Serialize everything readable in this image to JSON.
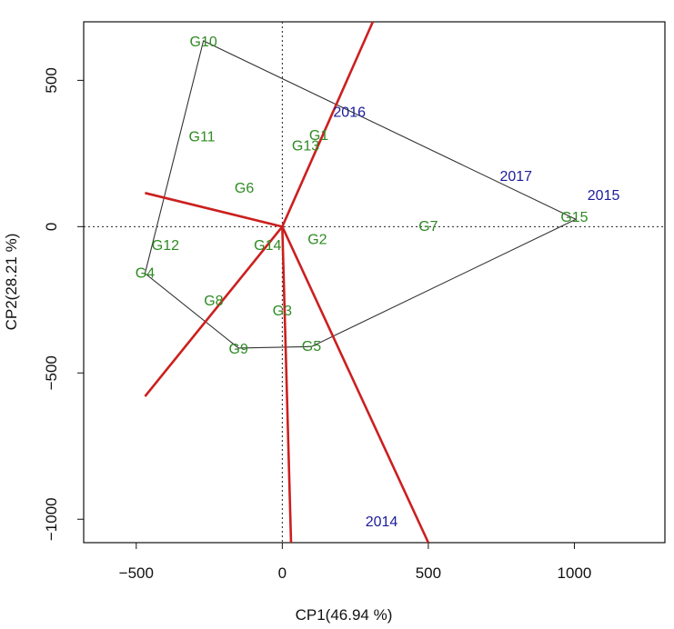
{
  "chart_data": {
    "type": "scatter",
    "title": "",
    "xlabel": "CP1(46.94 %)",
    "ylabel": "CP2(28.21 %)",
    "xlim": [
      -680,
      1310
    ],
    "ylim": [
      -1080,
      700
    ],
    "xticks": [
      -500,
      0,
      500,
      1000
    ],
    "yticks": [
      -1000,
      -500,
      0,
      500
    ],
    "xtick_labels": [
      "−500",
      "0",
      "500",
      "1000"
    ],
    "ytick_labels": [
      "−1000",
      "−500",
      "0",
      "500"
    ],
    "grid": false,
    "reference_lines": {
      "x": 0,
      "y": 0
    },
    "genotypes": [
      {
        "label": "G1",
        "x": 125,
        "y": 310
      },
      {
        "label": "G2",
        "x": 120,
        "y": -45
      },
      {
        "label": "G3",
        "x": 0,
        "y": -290
      },
      {
        "label": "G4",
        "x": -470,
        "y": -160
      },
      {
        "label": "G5",
        "x": 100,
        "y": -410
      },
      {
        "label": "G6",
        "x": -130,
        "y": 130
      },
      {
        "label": "G7",
        "x": 500,
        "y": 0
      },
      {
        "label": "G8",
        "x": -235,
        "y": -255
      },
      {
        "label": "G9",
        "x": -150,
        "y": -420
      },
      {
        "label": "G10",
        "x": -270,
        "y": 630
      },
      {
        "label": "G11",
        "x": -275,
        "y": 305
      },
      {
        "label": "G12",
        "x": -400,
        "y": -65
      },
      {
        "label": "G13",
        "x": 80,
        "y": 275
      },
      {
        "label": "G14",
        "x": -50,
        "y": -65
      },
      {
        "label": "G15",
        "x": 1000,
        "y": 30
      }
    ],
    "environments": [
      {
        "label": "2014",
        "x": 340,
        "y": -1010
      },
      {
        "label": "2015",
        "x": 1100,
        "y": 105
      },
      {
        "label": "2016",
        "x": 230,
        "y": 390
      },
      {
        "label": "2017",
        "x": 800,
        "y": 170
      }
    ],
    "hull": [
      [
        -270,
        635
      ],
      [
        1005,
        25
      ],
      [
        100,
        -410
      ],
      [
        -150,
        -415
      ],
      [
        -470,
        -160
      ]
    ],
    "sector_lines": [
      [
        -470,
        -580
      ],
      [
        30,
        -1080
      ],
      [
        500,
        -1080
      ],
      [
        -470,
        115
      ],
      [
        310,
        700
      ]
    ],
    "colors": {
      "genotype": "#2e8b22",
      "environment": "#1c1c9c",
      "sector": "#cc1f1f",
      "hull": "#333333",
      "reference": "#222222"
    }
  }
}
